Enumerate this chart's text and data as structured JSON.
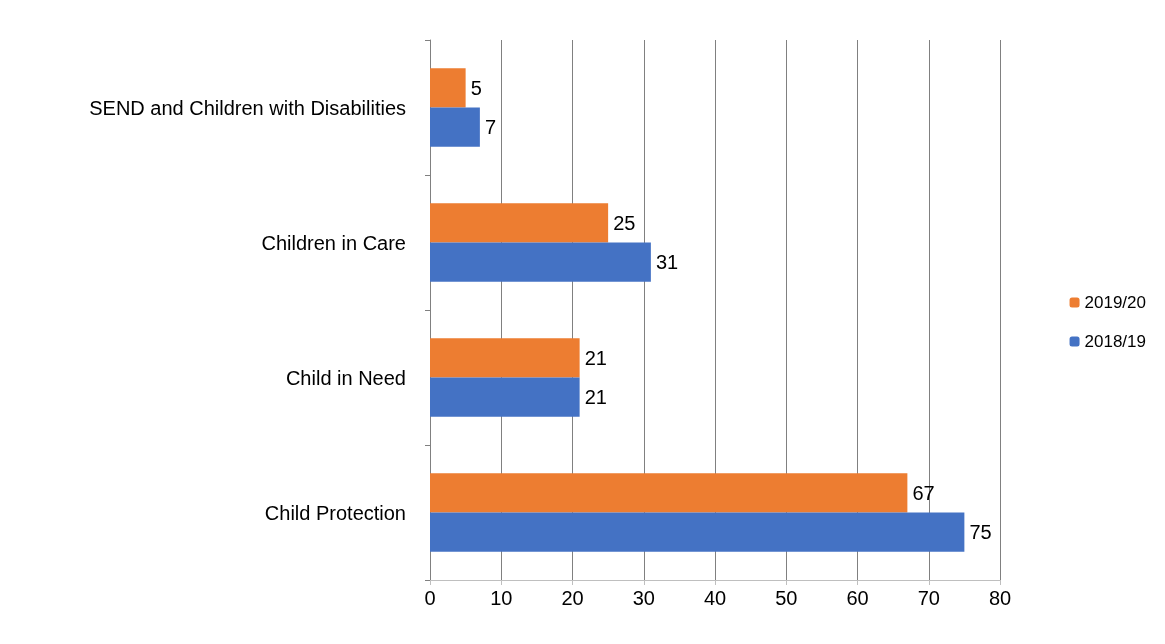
{
  "chart_data": {
    "type": "bar",
    "orientation": "horizontal",
    "categories": [
      "SEND and Children with Disabilities",
      "Children in Care",
      "Child in Need",
      "Child Protection"
    ],
    "series": [
      {
        "name": "2019/20",
        "color": "#ed7d31",
        "values": [
          5,
          25,
          21,
          67
        ]
      },
      {
        "name": "2018/19",
        "color": "#4472c4",
        "values": [
          7,
          31,
          21,
          75
        ]
      }
    ],
    "xlim": [
      0,
      80
    ],
    "xticks": [
      0,
      10,
      20,
      30,
      40,
      50,
      60,
      70,
      80
    ],
    "grid": "x",
    "legend": "right",
    "data_labels": true
  }
}
